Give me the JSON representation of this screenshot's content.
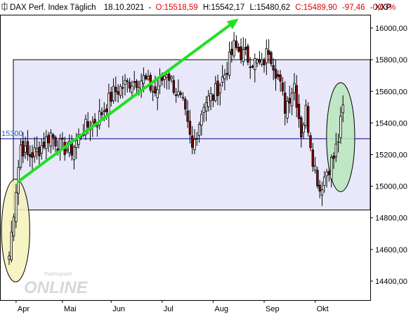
{
  "header": {
    "instrument": "DAX Perf. Index Täglich",
    "date": "18.10.2021",
    "open": "O:15518,59",
    "high": "H:15542,17",
    "low": "L:15480,62",
    "close": "C:15489,90",
    "change": "-97,46",
    "change_pct": "-0,63%",
    "currency": "XXP"
  },
  "watermark": {
    "brand_small": "Tradesignal®",
    "brand_large": "ONLINE"
  },
  "colors": {
    "up_candle": "#ffffff",
    "down_candle": "#8b0000",
    "candle_outline": "#000000",
    "range_box_fill": "#e8e8fa",
    "trend_arrow": "#22e022",
    "support_line": "#00008b",
    "support_label": "#1f5fcf",
    "ellipse_left_fill": "#f5f2b8",
    "ellipse_right_fill": "#b8e6b8",
    "change_text": "#e00000"
  },
  "chart_data": {
    "type": "candlestick",
    "title": "DAX Perf. Index Täglich",
    "ylim": [
      14280,
      16080
    ],
    "yticks": [
      14400,
      14600,
      14800,
      15000,
      15200,
      15400,
      15600,
      15800,
      16000
    ],
    "ytick_labels": [
      "14400,00",
      "14600,00",
      "14800,00",
      "15000,00",
      "15200,00",
      "15400,00",
      "15600,00",
      "15800,00",
      "16000,00"
    ],
    "months": [
      {
        "label": "Apr",
        "day": 3
      },
      {
        "label": "Mai",
        "day": 23
      },
      {
        "label": "Jun",
        "day": 44
      },
      {
        "label": "Jul",
        "day": 66
      },
      {
        "label": "Aug",
        "day": 88
      },
      {
        "label": "Sep",
        "day": 110
      },
      {
        "label": "Okt",
        "day": 132
      }
    ],
    "support_level": 15300,
    "support_label": "15300",
    "range_box": {
      "low": 14850,
      "high": 15800,
      "from_day": 0,
      "to_day": 150
    },
    "trend_arrow": {
      "from": {
        "day": 4,
        "price": 15030
      },
      "to": {
        "day": 99,
        "price": 16060
      }
    },
    "ellipses": [
      {
        "center_day": 2.8,
        "center_price": 14720,
        "radius_days": 3.8,
        "radius_price": 325
      },
      {
        "center_day": 143,
        "center_price": 15310,
        "radius_days": 3.8,
        "radius_price": 345
      }
    ],
    "anchors": [
      [
        0,
        14560
      ],
      [
        3,
        14990
      ],
      [
        5,
        15260
      ],
      [
        8,
        15190
      ],
      [
        12,
        15220
      ],
      [
        18,
        15330
      ],
      [
        22,
        15250
      ],
      [
        27,
        15230
      ],
      [
        32,
        15360
      ],
      [
        38,
        15420
      ],
      [
        45,
        15590
      ],
      [
        52,
        15660
      ],
      [
        58,
        15680
      ],
      [
        63,
        15590
      ],
      [
        68,
        15730
      ],
      [
        72,
        15600
      ],
      [
        75,
        15510
      ],
      [
        79,
        15230
      ],
      [
        84,
        15530
      ],
      [
        88,
        15570
      ],
      [
        93,
        15710
      ],
      [
        97,
        15880
      ],
      [
        103,
        15810
      ],
      [
        109,
        15760
      ],
      [
        112,
        15870
      ],
      [
        116,
        15690
      ],
      [
        119,
        15500
      ],
      [
        123,
        15650
      ],
      [
        126,
        15340
      ],
      [
        128,
        15480
      ],
      [
        131,
        15180
      ],
      [
        134,
        14980
      ],
      [
        137,
        15100
      ],
      [
        140,
        15180
      ],
      [
        142,
        15300
      ],
      [
        144,
        15490
      ]
    ]
  }
}
